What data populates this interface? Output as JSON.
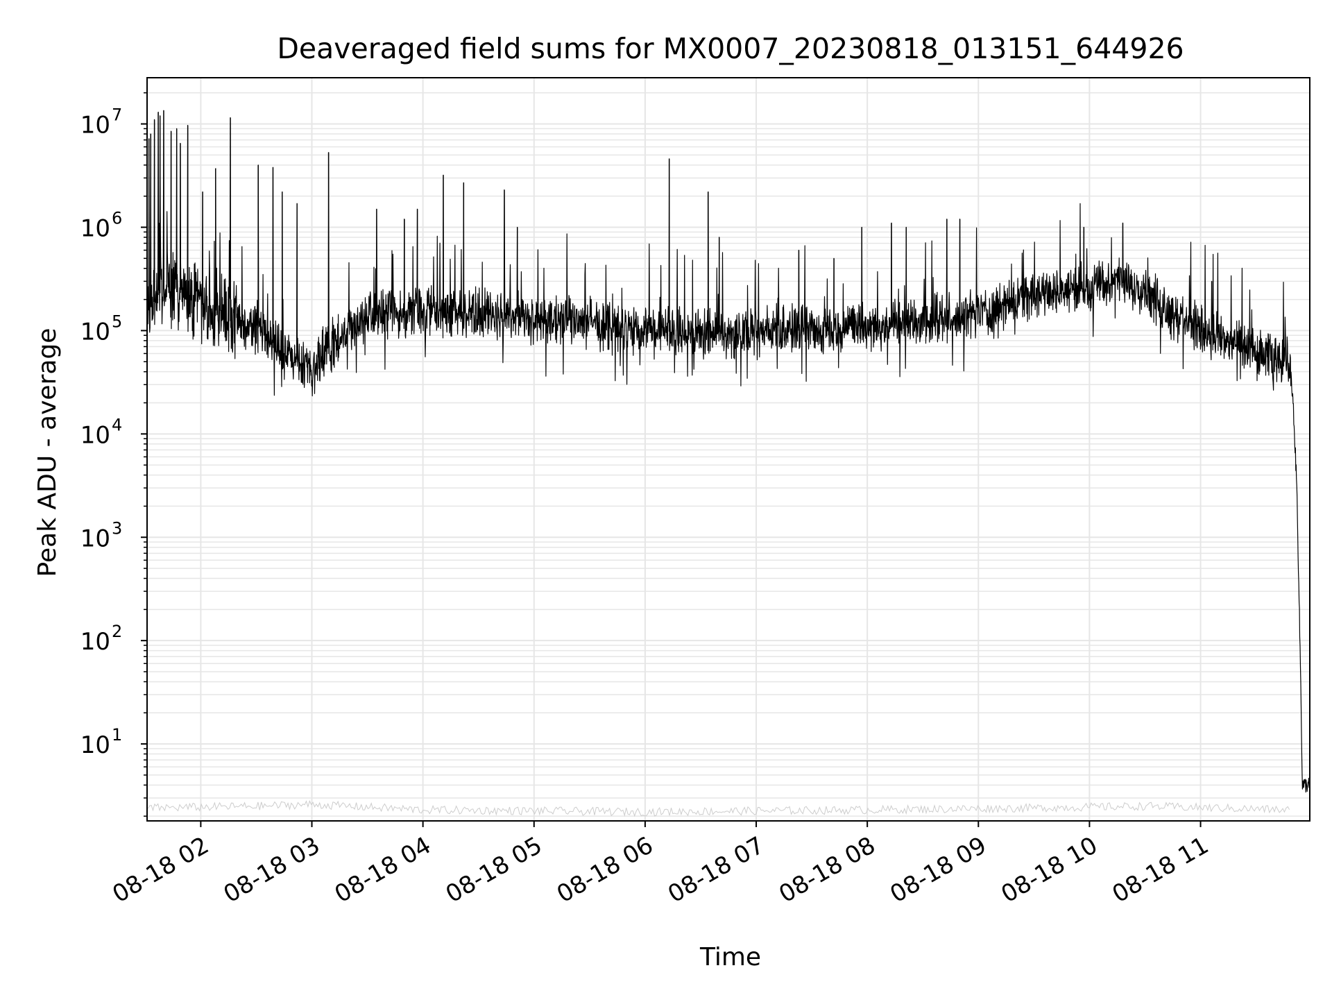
{
  "chart_data": {
    "type": "line",
    "title": "Deaveraged field sums for MX0007_20230818_013151_644926",
    "xlabel": "Time",
    "ylabel": "Peak ADU - average",
    "yscale": "log",
    "grid": true,
    "legend": "none",
    "line_color": "#000000",
    "grid_color": "#e6e6e6",
    "xlim": [
      "2023-08-18 01:31",
      "2023-08-18 11:59"
    ],
    "ylim": [
      1.8,
      28000000
    ],
    "x_ticks": [
      {
        "value": "2023-08-18 02:00",
        "label": "08-18 02"
      },
      {
        "value": "2023-08-18 03:00",
        "label": "08-18 03"
      },
      {
        "value": "2023-08-18 04:00",
        "label": "08-18 04"
      },
      {
        "value": "2023-08-18 05:00",
        "label": "08-18 05"
      },
      {
        "value": "2023-08-18 06:00",
        "label": "08-18 06"
      },
      {
        "value": "2023-08-18 07:00",
        "label": "08-18 07"
      },
      {
        "value": "2023-08-18 08:00",
        "label": "08-18 08"
      },
      {
        "value": "2023-08-18 09:00",
        "label": "08-18 09"
      },
      {
        "value": "2023-08-18 10:00",
        "label": "08-18 10"
      },
      {
        "value": "2023-08-18 11:00",
        "label": "08-18 11"
      }
    ],
    "y_ticks": [
      {
        "value": 10,
        "base": "10",
        "exp": "1"
      },
      {
        "value": 100,
        "base": "10",
        "exp": "2"
      },
      {
        "value": 1000,
        "base": "10",
        "exp": "3"
      },
      {
        "value": 10000,
        "base": "10",
        "exp": "4"
      },
      {
        "value": 100000,
        "base": "10",
        "exp": "5"
      },
      {
        "value": 1000000,
        "base": "10",
        "exp": "6"
      },
      {
        "value": 10000000,
        "base": "10",
        "exp": "7"
      }
    ],
    "baseline": [
      {
        "x": "2023-08-18 01:32",
        "y": 180000
      },
      {
        "x": "2023-08-18 01:40",
        "y": 250000
      },
      {
        "x": "2023-08-18 01:55",
        "y": 220000
      },
      {
        "x": "2023-08-18 02:10",
        "y": 130000
      },
      {
        "x": "2023-08-18 02:30",
        "y": 110000
      },
      {
        "x": "2023-08-18 02:45",
        "y": 60000
      },
      {
        "x": "2023-08-18 03:00",
        "y": 45000
      },
      {
        "x": "2023-08-18 03:15",
        "y": 90000
      },
      {
        "x": "2023-08-18 03:30",
        "y": 140000
      },
      {
        "x": "2023-08-18 04:00",
        "y": 150000
      },
      {
        "x": "2023-08-18 04:30",
        "y": 150000
      },
      {
        "x": "2023-08-18 05:00",
        "y": 130000
      },
      {
        "x": "2023-08-18 05:30",
        "y": 120000
      },
      {
        "x": "2023-08-18 06:00",
        "y": 100000
      },
      {
        "x": "2023-08-18 06:30",
        "y": 95000
      },
      {
        "x": "2023-08-18 07:00",
        "y": 100000
      },
      {
        "x": "2023-08-18 07:30",
        "y": 100000
      },
      {
        "x": "2023-08-18 08:00",
        "y": 110000
      },
      {
        "x": "2023-08-18 08:30",
        "y": 120000
      },
      {
        "x": "2023-08-18 09:00",
        "y": 150000
      },
      {
        "x": "2023-08-18 09:30",
        "y": 220000
      },
      {
        "x": "2023-08-18 09:50",
        "y": 250000
      },
      {
        "x": "2023-08-18 10:15",
        "y": 300000
      },
      {
        "x": "2023-08-18 10:30",
        "y": 250000
      },
      {
        "x": "2023-08-18 10:40",
        "y": 170000
      },
      {
        "x": "2023-08-18 11:00",
        "y": 100000
      },
      {
        "x": "2023-08-18 11:30",
        "y": 60000
      },
      {
        "x": "2023-08-18 11:48",
        "y": 50000
      },
      {
        "x": "2023-08-18 11:50",
        "y": 20000
      },
      {
        "x": "2023-08-18 11:52",
        "y": 3000
      },
      {
        "x": "2023-08-18 11:53",
        "y": 400
      },
      {
        "x": "2023-08-18 11:54",
        "y": 50
      },
      {
        "x": "2023-08-18 11:55",
        "y": 4
      },
      {
        "x": "2023-08-18 11:59",
        "y": 4
      }
    ],
    "noise_band": [
      {
        "x": "2023-08-18 01:31",
        "y": 2.4
      },
      {
        "x": "2023-08-18 02:30",
        "y": 2.5
      },
      {
        "x": "2023-08-18 03:00",
        "y": 2.6
      },
      {
        "x": "2023-08-18 04:00",
        "y": 2.3
      },
      {
        "x": "2023-08-18 06:00",
        "y": 2.2
      },
      {
        "x": "2023-08-18 08:00",
        "y": 2.3
      },
      {
        "x": "2023-08-18 09:30",
        "y": 2.4
      },
      {
        "x": "2023-08-18 10:30",
        "y": 2.5
      },
      {
        "x": "2023-08-18 11:48",
        "y": 2.3
      }
    ],
    "spikes": [
      {
        "x": "2023-08-18 01:32",
        "y": 7200000
      },
      {
        "x": "2023-08-18 01:33",
        "y": 8000000
      },
      {
        "x": "2023-08-18 01:35",
        "y": 11000000
      },
      {
        "x": "2023-08-18 01:37",
        "y": 13000000
      },
      {
        "x": "2023-08-18 01:38",
        "y": 12000000
      },
      {
        "x": "2023-08-18 01:40",
        "y": 13500000
      },
      {
        "x": "2023-08-18 01:44",
        "y": 8500000
      },
      {
        "x": "2023-08-18 01:47",
        "y": 9000000
      },
      {
        "x": "2023-08-18 01:49",
        "y": 6500000
      },
      {
        "x": "2023-08-18 01:53",
        "y": 9700000
      },
      {
        "x": "2023-08-18 02:01",
        "y": 2200000
      },
      {
        "x": "2023-08-18 02:08",
        "y": 3700000
      },
      {
        "x": "2023-08-18 02:16",
        "y": 11500000
      },
      {
        "x": "2023-08-18 02:31",
        "y": 4000000
      },
      {
        "x": "2023-08-18 02:39",
        "y": 3800000
      },
      {
        "x": "2023-08-18 02:44",
        "y": 2200000
      },
      {
        "x": "2023-08-18 02:52",
        "y": 1700000
      },
      {
        "x": "2023-08-18 03:09",
        "y": 5300000
      },
      {
        "x": "2023-08-18 03:35",
        "y": 1500000
      },
      {
        "x": "2023-08-18 03:50",
        "y": 1200000
      },
      {
        "x": "2023-08-18 03:57",
        "y": 1500000
      },
      {
        "x": "2023-08-18 04:11",
        "y": 3200000
      },
      {
        "x": "2023-08-18 04:22",
        "y": 2700000
      },
      {
        "x": "2023-08-18 04:44",
        "y": 2300000
      },
      {
        "x": "2023-08-18 04:51",
        "y": 1000000
      },
      {
        "x": "2023-08-18 06:13",
        "y": 4600000
      },
      {
        "x": "2023-08-18 06:34",
        "y": 2200000
      },
      {
        "x": "2023-08-18 06:40",
        "y": 800000
      },
      {
        "x": "2023-08-18 07:23",
        "y": 600000
      },
      {
        "x": "2023-08-18 07:42",
        "y": 500000
      },
      {
        "x": "2023-08-18 07:57",
        "y": 1000000
      },
      {
        "x": "2023-08-18 08:13",
        "y": 1100000
      },
      {
        "x": "2023-08-18 08:21",
        "y": 1000000
      },
      {
        "x": "2023-08-18 08:43",
        "y": 1200000
      },
      {
        "x": "2023-08-18 08:50",
        "y": 1200000
      },
      {
        "x": "2023-08-18 09:57",
        "y": 1000000
      },
      {
        "x": "2023-08-18 10:18",
        "y": 1100000
      },
      {
        "x": "2023-08-18 11:06",
        "y": 300000
      }
    ]
  }
}
